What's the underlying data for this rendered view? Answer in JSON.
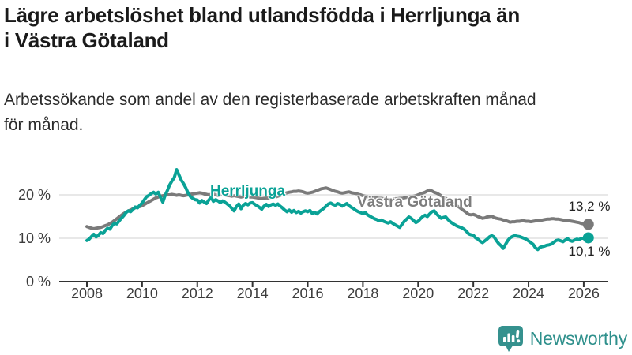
{
  "header": {
    "title_line1": "Lägre arbetslöshet bland utlandsfödda i Herrljunga än",
    "title_line2": "i Västra Götaland",
    "subtitle_line1": "Arbetssökande som andel av den registerbaserade arbetskraften månad",
    "subtitle_line2": "för månad."
  },
  "chart_data": {
    "type": "line",
    "unit": "%",
    "x_start": "2008-01",
    "x_end": "2026-03",
    "points_per_year": 12,
    "x_ticks": [
      2008,
      2010,
      2012,
      2014,
      2016,
      2018,
      2020,
      2022,
      2024,
      2026
    ],
    "y_ticks": [
      {
        "value": 0,
        "label": "0 %"
      },
      {
        "value": 10,
        "label": "10 %"
      },
      {
        "value": 20,
        "label": "20 %"
      }
    ],
    "ylim": [
      0,
      27
    ],
    "grid": "horizontal",
    "colors": {
      "herrljunga": "#0aa296",
      "vastra_gotaland": "#7a7a7a",
      "gridline": "#d9d9d9",
      "axis": "#333333",
      "tick_text": "#3c3c3c"
    },
    "series": [
      {
        "name": "Västra Götaland",
        "color": "#7a7a7a",
        "end_label": "13,2 %",
        "end_value": 13.2,
        "values": [
          12.7,
          12.5,
          12.3,
          12.2,
          12.3,
          12.4,
          12.5,
          12.7,
          12.9,
          13.1,
          13.4,
          13.7,
          14.1,
          14.5,
          14.9,
          15.3,
          15.7,
          16.0,
          16.3,
          16.5,
          16.8,
          17.0,
          17.2,
          17.3,
          17.5,
          17.8,
          18.1,
          18.4,
          18.7,
          19.0,
          19.3,
          19.5,
          19.7,
          19.8,
          19.9,
          20.0,
          20.0,
          20.1,
          20.0,
          19.9,
          20.0,
          19.9,
          19.8,
          19.9,
          20.0,
          20.1,
          20.2,
          20.3,
          20.4,
          20.5,
          20.4,
          20.2,
          20.1,
          20.0,
          20.1,
          20.2,
          20.0,
          19.9,
          20.0,
          20.1,
          20.0,
          19.9,
          19.8,
          19.7,
          19.8,
          19.7,
          19.6,
          19.5,
          19.6,
          19.7,
          19.6,
          19.5,
          19.5,
          19.4,
          19.3,
          19.2,
          19.1,
          19.2,
          19.3,
          19.2,
          19.3,
          19.4,
          19.5,
          19.7,
          19.9,
          20.1,
          20.3,
          20.5,
          20.6,
          20.7,
          20.8,
          20.8,
          20.9,
          20.8,
          20.7,
          20.5,
          20.4,
          20.5,
          20.6,
          20.8,
          21.0,
          21.2,
          21.4,
          21.5,
          21.6,
          21.4,
          21.2,
          21.0,
          20.8,
          20.7,
          20.5,
          20.4,
          20.5,
          20.6,
          20.7,
          20.5,
          20.4,
          20.3,
          20.1,
          20.0,
          19.8,
          19.7,
          19.6,
          19.5,
          19.4,
          19.4,
          19.3,
          19.2,
          19.2,
          19.1,
          19.1,
          19.0,
          19.0,
          19.0,
          19.1,
          19.1,
          19.2,
          19.2,
          19.3,
          19.4,
          19.5,
          19.6,
          19.7,
          19.8,
          20.0,
          20.2,
          20.4,
          20.6,
          20.9,
          21.1,
          20.9,
          20.6,
          20.4,
          20.1,
          19.8,
          19.5,
          19.2,
          18.8,
          18.4,
          18.1,
          17.8,
          17.4,
          17.1,
          16.7,
          16.3,
          15.9,
          15.5,
          15.4,
          15.5,
          15.3,
          15.0,
          14.8,
          14.6,
          14.7,
          14.9,
          15.0,
          15.1,
          14.8,
          14.6,
          14.5,
          14.4,
          14.2,
          14.1,
          13.9,
          13.7,
          13.8,
          13.8,
          13.9,
          13.9,
          14.0,
          14.0,
          13.9,
          13.9,
          13.8,
          13.9,
          14.0,
          14.0,
          14.1,
          14.2,
          14.3,
          14.4,
          14.4,
          14.5,
          14.5,
          14.4,
          14.4,
          14.3,
          14.2,
          14.1,
          14.1,
          14.0,
          13.9,
          13.8,
          13.7,
          13.6,
          13.4,
          13.3,
          13.2,
          13.2
        ]
      },
      {
        "name": "Herrljunga",
        "color": "#0aa296",
        "end_label": "10,1 %",
        "end_value": 10.1,
        "values": [
          9.5,
          9.8,
          10.4,
          10.9,
          10.3,
          10.7,
          11.3,
          11.1,
          11.8,
          12.3,
          12.1,
          12.9,
          13.5,
          13.3,
          14.0,
          14.6,
          15.2,
          15.9,
          16.3,
          16.1,
          16.6,
          17.2,
          17.0,
          17.6,
          18.1,
          18.9,
          19.6,
          19.9,
          20.3,
          20.6,
          20.2,
          20.6,
          19.4,
          18.3,
          19.9,
          21.0,
          22.3,
          23.2,
          24.0,
          25.8,
          24.6,
          23.4,
          22.6,
          21.6,
          20.4,
          19.6,
          19.2,
          18.9,
          18.8,
          18.1,
          18.7,
          18.3,
          18.0,
          18.8,
          19.4,
          18.5,
          18.9,
          18.6,
          18.2,
          18.6,
          18.3,
          17.9,
          17.5,
          16.9,
          16.3,
          17.3,
          17.9,
          16.8,
          17.6,
          18.0,
          17.7,
          18.1,
          18.2,
          17.8,
          17.5,
          17.1,
          16.7,
          17.4,
          17.8,
          17.3,
          17.7,
          17.9,
          17.6,
          17.9,
          17.4,
          17.0,
          16.5,
          16.1,
          16.5,
          16.0,
          16.4,
          15.9,
          16.2,
          15.8,
          16.1,
          16.3,
          16.1,
          16.4,
          15.7,
          16.0,
          15.6,
          16.1,
          16.5,
          16.9,
          17.4,
          17.9,
          18.1,
          17.8,
          17.6,
          18.0,
          17.8,
          17.4,
          17.7,
          18.0,
          17.5,
          17.1,
          16.8,
          16.4,
          16.1,
          15.9,
          15.7,
          15.9,
          15.4,
          15.1,
          14.8,
          14.5,
          14.3,
          14.0,
          14.2,
          13.9,
          13.7,
          13.5,
          13.8,
          13.4,
          13.1,
          12.8,
          12.5,
          13.2,
          13.9,
          14.4,
          14.9,
          14.6,
          14.1,
          13.6,
          13.9,
          14.5,
          15.0,
          15.3,
          15.0,
          15.6,
          16.1,
          16.3,
          15.6,
          15.1,
          14.6,
          14.8,
          14.9,
          14.3,
          13.8,
          13.4,
          13.1,
          12.8,
          12.6,
          12.4,
          12.1,
          11.6,
          11.0,
          10.8,
          10.7,
          10.1,
          9.8,
          9.3,
          9.0,
          9.4,
          9.8,
          10.3,
          10.6,
          10.3,
          9.5,
          8.8,
          8.3,
          7.7,
          8.6,
          9.5,
          10.1,
          10.4,
          10.6,
          10.5,
          10.4,
          10.2,
          10.0,
          9.8,
          9.4,
          9.0,
          8.6,
          7.8,
          7.4,
          7.9,
          8.1,
          8.2,
          8.4,
          8.5,
          8.7,
          9.1,
          9.5,
          9.6,
          9.4,
          9.2,
          9.6,
          9.9,
          9.5,
          9.3,
          9.6,
          9.8,
          9.7,
          10.0,
          10.0,
          9.9,
          10.1
        ]
      }
    ]
  },
  "footer": {
    "brand": "Newsworthy",
    "brand_color": "#2f908c",
    "logo_color": "#35918e"
  }
}
